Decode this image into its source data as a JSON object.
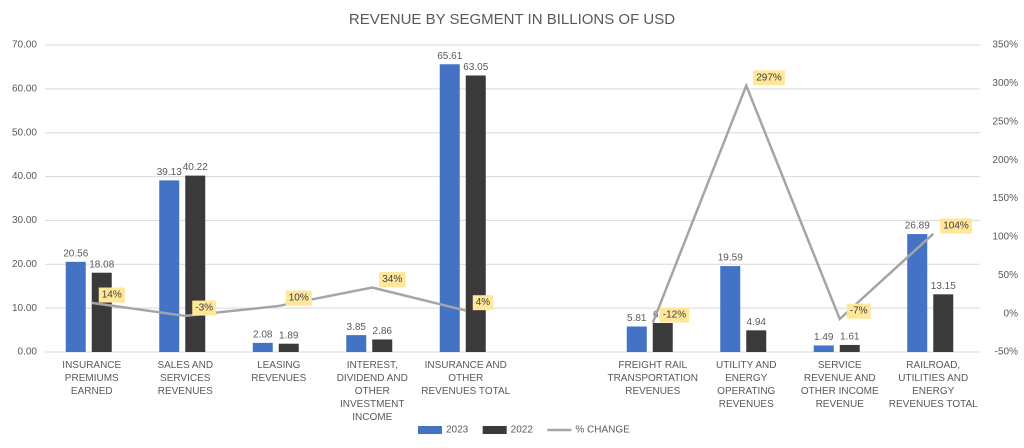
{
  "chart_data": {
    "type": "bar",
    "title": "REVENUE BY SEGMENT IN BILLIONS OF USD",
    "categories": [
      "INSURANCE PREMIUMS EARNED",
      "SALES AND SERVICES REVENUES",
      "LEASING REVENUES",
      "INTEREST, DIVIDEND AND OTHER INVESTMENT INCOME",
      "INSURANCE AND OTHER REVENUES TOTAL",
      null,
      "FREIGHT RAIL TRANSPORTATION REVENUES",
      "UTILITY AND ENERGY OPERATING REVENUES",
      "SERVICE REVENUE AND OTHER INCOME REVENUE",
      "RAILROAD, UTILITIES AND ENERGY REVENUES TOTAL"
    ],
    "series": [
      {
        "name": "2023",
        "type": "bar",
        "color": "#4472c4",
        "values": [
          20.56,
          39.13,
          2.08,
          3.85,
          65.61,
          null,
          5.81,
          19.59,
          1.49,
          26.89
        ]
      },
      {
        "name": "2022",
        "type": "bar",
        "color": "#3a3a3a",
        "values": [
          18.08,
          40.22,
          1.89,
          2.86,
          63.05,
          null,
          6.61,
          4.94,
          1.61,
          13.15
        ]
      },
      {
        "name": "% CHANGE",
        "type": "line",
        "axis": "y2",
        "color": "#a5a5a5",
        "values": [
          14,
          -3,
          10,
          34,
          4,
          null,
          -12,
          297,
          -7,
          104
        ],
        "value_labels": [
          "14%",
          "-3%",
          "10%",
          "34%",
          "4%",
          null,
          "-12%",
          "297%",
          "-7%",
          "104%"
        ]
      }
    ],
    "ylim": [
      0,
      70
    ],
    "yticks": [
      {
        "value": 0,
        "label": "0.00"
      },
      {
        "value": 10,
        "label": "10.00"
      },
      {
        "value": 20,
        "label": "20.00"
      },
      {
        "value": 30,
        "label": "30.00"
      },
      {
        "value": 40,
        "label": "40.00"
      },
      {
        "value": 50,
        "label": "50.00"
      },
      {
        "value": 60,
        "label": "60.00"
      },
      {
        "value": 70,
        "label": "70.00"
      }
    ],
    "y2lim": [
      -50,
      350
    ],
    "y2ticks": [
      {
        "value": -50,
        "label": "-50%"
      },
      {
        "value": 0,
        "label": "0%"
      },
      {
        "value": 50,
        "label": "50%"
      },
      {
        "value": 100,
        "label": "100%"
      },
      {
        "value": 150,
        "label": "150%"
      },
      {
        "value": 200,
        "label": "200%"
      },
      {
        "value": 250,
        "label": "250%"
      },
      {
        "value": 300,
        "label": "300%"
      },
      {
        "value": 350,
        "label": "350%"
      }
    ],
    "grid": true,
    "legend": "bottom"
  }
}
